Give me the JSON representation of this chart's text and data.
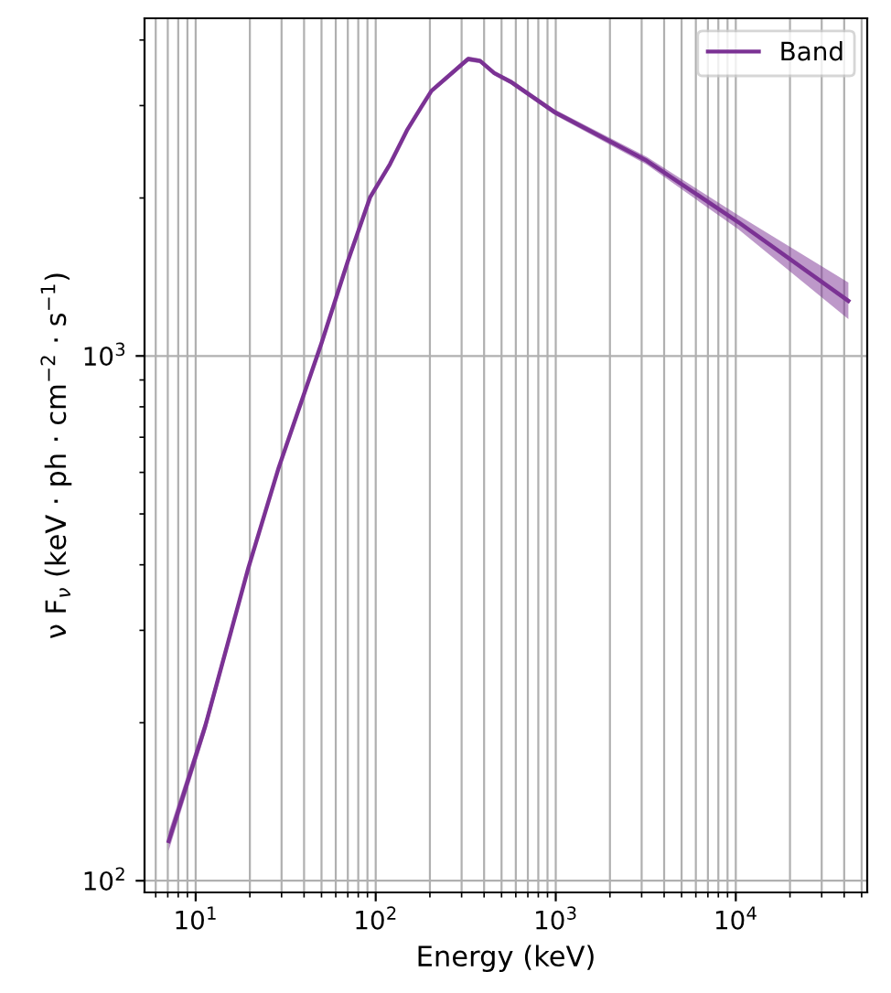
{
  "chart_data": {
    "type": "line",
    "xlabel": "Energy (keV)",
    "ylabel": "ν F$_{ν}$ (keV · ph · cm$^{−2}$ · s$^{−1}$)",
    "log": "xy",
    "grid": true,
    "legend": "top right",
    "xlim": [
      5.2,
      53700
    ],
    "ylim": [
      95,
      4400
    ],
    "xticks": [
      {
        "value": 10,
        "label": "10$^{1}$"
      },
      {
        "value": 100,
        "label": "10$^{2}$"
      },
      {
        "value": 1000,
        "label": "10$^{3}$"
      },
      {
        "value": 10000,
        "label": "10$^{4}$"
      }
    ],
    "yticks": [
      {
        "value": 100,
        "label": "10$^{2}$"
      },
      {
        "value": 1000,
        "label": "10$^{3}$"
      }
    ],
    "series": [
      {
        "name": "Band",
        "color": "#7b3294",
        "x": [
          7.08,
          11.3,
          19.6,
          28.9,
          50,
          70,
          93,
          120,
          149,
          180,
          204,
          250,
          326,
          380,
          455,
          562,
          993,
          3200,
          10300,
          42200
        ],
        "values": [
          119,
          197,
          394,
          612,
          1058,
          1515,
          2005,
          2320,
          2690,
          2990,
          3200,
          3400,
          3680,
          3650,
          3460,
          3330,
          2910,
          2355,
          1800,
          1273
        ],
        "lower": [
          114,
          191,
          386,
          602,
          1045,
          1497,
          1985,
          2298,
          2665,
          2962,
          3170,
          3368,
          3640,
          3612,
          3425,
          3295,
          2875,
          2315,
          1745,
          1176
        ],
        "upper": [
          124,
          203,
          402,
          622,
          1071,
          1533,
          2025,
          2342,
          2715,
          3018,
          3230,
          3432,
          3720,
          3688,
          3495,
          3365,
          2945,
          2395,
          1855,
          1380
        ]
      }
    ]
  }
}
